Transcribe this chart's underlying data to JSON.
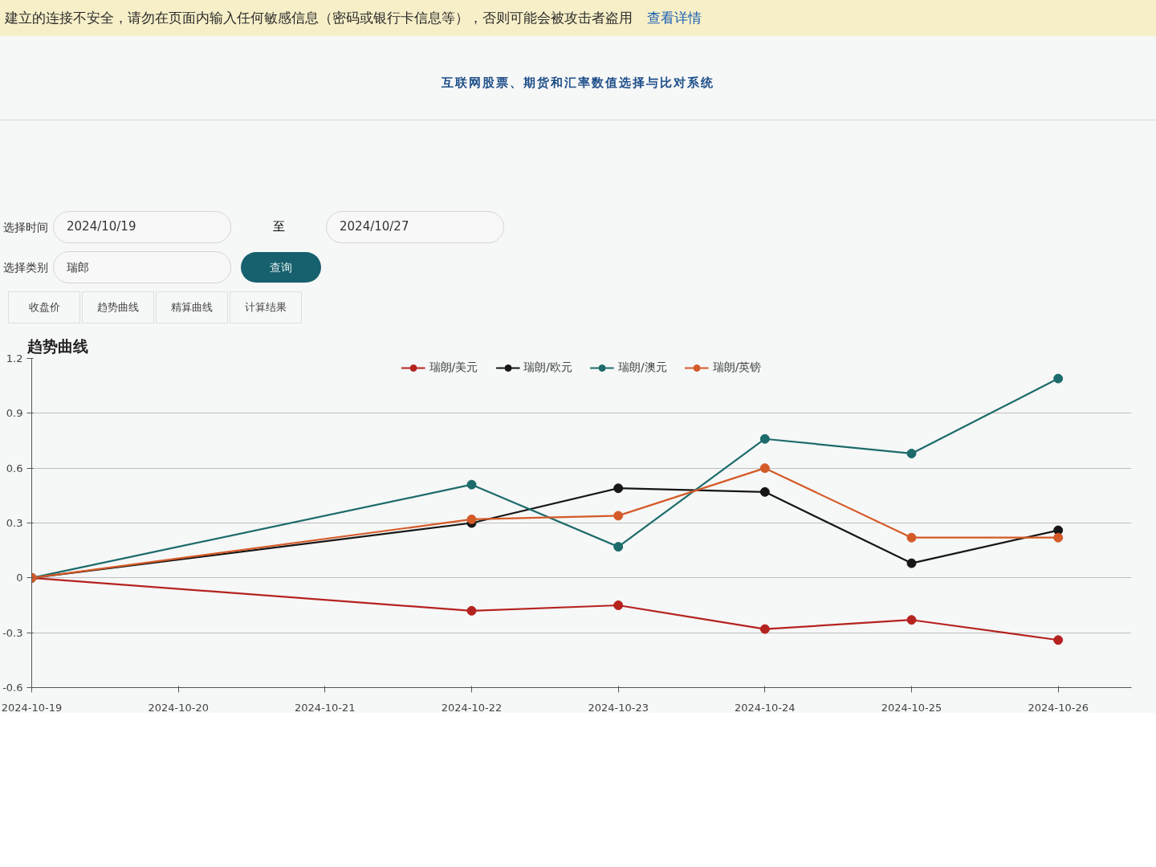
{
  "chart_data": {
    "type": "line",
    "title": "互联网股票、期货和汇率数值选择与比对系统",
    "subtitle": "趋势曲线",
    "annotations": [
      "建立的连接不安全，请勿在页面内输入任何敏感信息（密码或银行卡信息等），否则可能会被攻击者盗用",
      "查看详情",
      "选择时间",
      "2024/10/19",
      "至",
      "2024/10/27",
      "选择类别",
      "瑞郎",
      "查询",
      "收盘价",
      "趋势曲线",
      "精算曲线",
      "计算结果"
    ],
    "x": [
      "2024-10-19",
      "2024-10-22",
      "2024-10-23",
      "2024-10-24",
      "2024-10-25",
      "2024-10-26"
    ],
    "series": [
      {
        "name": "瑞朗/美元",
        "color": "#b5231f",
        "values": [
          0,
          -0.18,
          -0.15,
          -0.28,
          -0.23,
          -0.34
        ]
      },
      {
        "name": "瑞朗/欧元",
        "color": "#161616",
        "values": [
          0,
          0.3,
          0.49,
          0.47,
          0.08,
          0.26
        ]
      },
      {
        "name": "瑞朗/澳元",
        "color": "#1d6b6b",
        "values": [
          0,
          0.51,
          0.17,
          0.76,
          0.68,
          1.09
        ]
      },
      {
        "name": "瑞朗/英镑",
        "color": "#d45a28",
        "values": [
          0,
          0.32,
          0.34,
          0.6,
          0.22,
          0.22
        ]
      }
    ],
    "xlim": [
      "2024-10-19",
      "2024-10-26T12:00"
    ],
    "xticks": [
      "2024-10-19",
      "2024-10-20",
      "2024-10-21",
      "2024-10-22",
      "2024-10-23",
      "2024-10-24",
      "2024-10-25",
      "2024-10-26"
    ],
    "ylim": [
      -0.6,
      1.2
    ],
    "yticks": [
      -0.6,
      -0.3,
      0,
      0.3,
      0.6,
      0.9,
      1.2
    ],
    "grid": "y",
    "legend": "top",
    "marker": "circle"
  }
}
